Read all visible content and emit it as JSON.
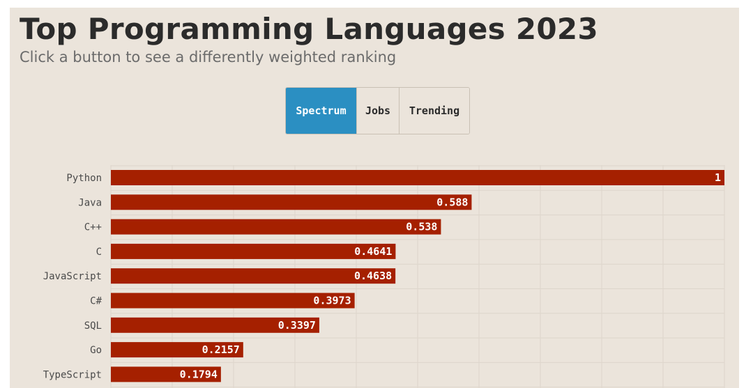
{
  "header": {
    "title": "Top Programming Languages 2023",
    "subtitle": "Click a button to see a differently weighted ranking"
  },
  "ranking_buttons": [
    {
      "label": "Spectrum",
      "active": true
    },
    {
      "label": "Jobs",
      "active": false
    },
    {
      "label": "Trending",
      "active": false
    }
  ],
  "colors": {
    "bar": "#a52000",
    "active_button": "#2b8fc2",
    "background": "#ebe4db",
    "grid": "#ddd5cb"
  },
  "chart_data": {
    "type": "bar",
    "orientation": "horizontal",
    "title": "Top Programming Languages 2023",
    "categories": [
      "Python",
      "Java",
      "C++",
      "C",
      "JavaScript",
      "C#",
      "SQL",
      "Go",
      "TypeScript"
    ],
    "values": [
      1,
      0.588,
      0.538,
      0.4641,
      0.4638,
      0.3973,
      0.3397,
      0.2157,
      0.1794
    ],
    "value_labels": [
      "1",
      "0.588",
      "0.538",
      "0.4641",
      "0.4638",
      "0.3973",
      "0.3397",
      "0.2157",
      "0.1794"
    ],
    "xlim": [
      0,
      1
    ],
    "grid": true,
    "xlabel": "",
    "ylabel": ""
  }
}
